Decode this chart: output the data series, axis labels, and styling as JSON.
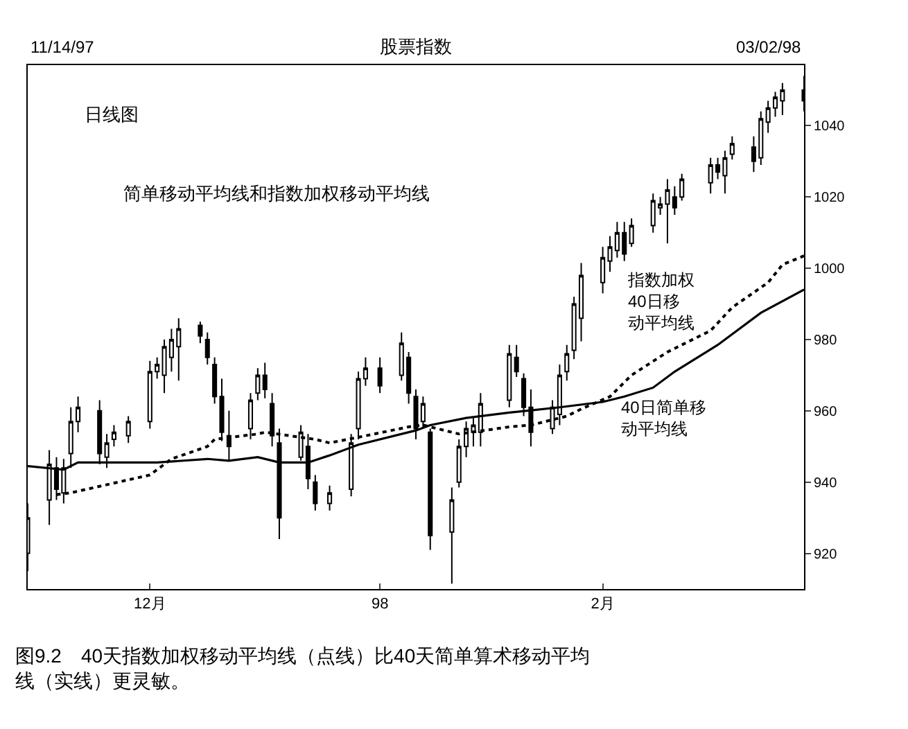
{
  "chart_data": {
    "type": "candlestick",
    "title": "股票指数",
    "annotations": [
      "11/14/97",
      "03/02/98",
      "日线图",
      "简单移动平均线和指数加权移动平均线",
      "图9.2　40天指数加权移动平均线（点线）比40天简单算术移动平均线（实线）更灵敏。"
    ],
    "x": [
      "1997-11-14",
      "1997-11-17",
      "1997-11-18",
      "1997-11-19",
      "1997-11-20",
      "1997-11-21",
      "1997-11-24",
      "1997-11-25",
      "1997-11-26",
      "1997-11-28",
      "1997-12-01",
      "1997-12-02",
      "1997-12-03",
      "1997-12-04",
      "1997-12-05",
      "1997-12-08",
      "1997-12-09",
      "1997-12-10",
      "1997-12-11",
      "1997-12-12",
      "1997-12-15",
      "1997-12-16",
      "1997-12-17",
      "1997-12-18",
      "1997-12-19",
      "1997-12-22",
      "1997-12-23",
      "1997-12-24",
      "1997-12-26",
      "1997-12-29",
      "1997-12-30",
      "1997-12-31",
      "1998-01-02",
      "1998-01-05",
      "1998-01-06",
      "1998-01-07",
      "1998-01-08",
      "1998-01-09",
      "1998-01-12",
      "1998-01-13",
      "1998-01-14",
      "1998-01-15",
      "1998-01-16",
      "1998-01-20",
      "1998-01-21",
      "1998-01-22",
      "1998-01-23",
      "1998-01-26",
      "1998-01-27",
      "1998-01-28",
      "1998-01-29",
      "1998-01-30",
      "1998-02-02",
      "1998-02-03",
      "1998-02-04",
      "1998-02-05",
      "1998-02-06",
      "1998-02-09",
      "1998-02-10",
      "1998-02-11",
      "1998-02-12",
      "1998-02-13",
      "1998-02-17",
      "1998-02-18",
      "1998-02-19",
      "1998-02-20",
      "1998-02-23",
      "1998-02-24",
      "1998-02-25",
      "1998-02-26",
      "1998-02-27",
      "1998-03-02"
    ],
    "ohlc": [
      [
        920,
        934,
        915,
        930
      ],
      [
        935,
        949,
        928,
        945
      ],
      [
        944,
        947,
        935,
        938
      ],
      [
        937,
        946.5,
        934,
        944
      ],
      [
        948,
        961,
        944,
        957
      ],
      [
        957,
        964,
        954,
        961
      ],
      [
        960,
        963,
        945,
        948
      ],
      [
        947,
        953.5,
        944,
        951
      ],
      [
        952,
        956,
        950,
        954
      ],
      [
        953,
        958.5,
        951,
        957
      ],
      [
        957,
        974,
        955,
        971
      ],
      [
        971,
        975,
        969,
        973
      ],
      [
        970,
        980,
        965,
        978
      ],
      [
        975,
        983,
        971,
        980
      ],
      [
        978,
        986,
        968.5,
        983
      ],
      [
        984,
        985,
        979,
        981
      ],
      [
        980,
        982,
        973,
        975
      ],
      [
        973,
        975,
        962,
        964
      ],
      [
        964,
        969,
        951.5,
        954
      ],
      [
        953,
        960,
        946,
        950
      ],
      [
        955,
        965,
        952,
        963
      ],
      [
        965,
        972,
        963,
        970
      ],
      [
        970,
        973.5,
        963.5,
        966
      ],
      [
        962,
        965,
        950,
        953
      ],
      [
        951,
        955,
        924,
        930
      ],
      [
        947,
        956,
        946,
        954
      ],
      [
        950,
        953.5,
        938,
        941
      ],
      [
        940,
        942,
        932,
        934
      ],
      [
        934,
        939,
        932,
        937
      ],
      [
        938,
        953.5,
        936,
        951
      ],
      [
        955,
        971,
        952,
        969
      ],
      [
        969,
        975,
        967,
        972
      ],
      [
        972,
        975,
        965,
        967
      ],
      [
        970,
        982,
        968.5,
        979
      ],
      [
        975,
        976.5,
        962,
        965
      ],
      [
        964,
        966,
        952,
        955
      ],
      [
        957,
        964,
        955,
        962
      ],
      [
        954,
        955,
        921,
        925
      ],
      [
        926,
        938.5,
        911.5,
        935
      ],
      [
        940,
        952,
        938.5,
        950
      ],
      [
        950,
        957,
        947,
        955
      ],
      [
        954,
        958,
        950,
        956
      ],
      [
        954,
        965,
        950,
        962
      ],
      [
        963,
        978.5,
        961,
        976
      ],
      [
        975,
        978.5,
        969.5,
        971
      ],
      [
        969,
        970.5,
        958.5,
        961
      ],
      [
        961,
        966,
        950,
        954
      ],
      [
        955,
        963,
        953.5,
        961
      ],
      [
        959,
        973,
        956,
        970
      ],
      [
        971,
        978.5,
        968.5,
        976
      ],
      [
        977,
        992,
        974.5,
        990
      ],
      [
        986,
        1001.5,
        979.5,
        998
      ],
      [
        996,
        1006,
        993,
        1003
      ],
      [
        1002,
        1009,
        999,
        1006
      ],
      [
        1005,
        1013,
        1003,
        1010
      ],
      [
        1010,
        1013,
        1002,
        1004
      ],
      [
        1007,
        1014,
        1006,
        1012
      ],
      [
        1012,
        1021,
        1010,
        1019
      ],
      [
        1017,
        1020,
        1015,
        1018
      ],
      [
        1018,
        1025,
        1007,
        1022
      ],
      [
        1020,
        1023,
        1015,
        1017
      ],
      [
        1020,
        1026.5,
        1019,
        1025
      ],
      [
        1024,
        1031,
        1021,
        1029
      ],
      [
        1029,
        1031,
        1025,
        1027
      ],
      [
        1026,
        1033,
        1021,
        1031
      ],
      [
        1032,
        1037,
        1030.5,
        1035
      ],
      [
        1034,
        1037,
        1027,
        1030
      ],
      [
        1031,
        1044,
        1029,
        1042
      ],
      [
        1041,
        1047,
        1038,
        1045
      ],
      [
        1045,
        1049.5,
        1042.5,
        1048
      ],
      [
        1047,
        1052,
        1043,
        1050
      ],
      [
        1050,
        1054,
        1044,
        1047
      ]
    ],
    "color": "#000000",
    "series": [
      {
        "name": "指数加权40日移动平均线",
        "type": "line",
        "line_style": "dotted",
        "color": "#000000",
        "x": [
          "1997-11-18",
          "1997-11-20",
          "1997-12-01",
          "1997-12-04",
          "1997-12-09",
          "1997-12-10",
          "1997-12-16",
          "1997-12-17",
          "1997-12-24",
          "1997-12-26",
          "1997-12-31",
          "1998-01-06",
          "1998-01-08",
          "1998-01-13",
          "1998-01-20",
          "1998-01-23",
          "1998-01-28",
          "1998-01-30",
          "1998-02-03",
          "1998-02-06",
          "1998-02-11",
          "1998-02-17",
          "1998-02-20",
          "1998-02-25",
          "1998-02-27",
          "1998-03-02"
        ],
        "values": [
          936.5,
          937,
          942,
          946.5,
          950,
          952,
          953.5,
          954,
          952,
          951,
          953,
          955.5,
          956,
          953.5,
          955.5,
          956,
          958.5,
          960.5,
          964,
          970,
          976.5,
          982.5,
          989,
          996,
          1001,
          1003.5
        ]
      },
      {
        "name": "40日简单移动平均线",
        "type": "line",
        "line_style": "solid",
        "color": "#000000",
        "x": [
          "1997-11-14",
          "1997-11-19",
          "1997-11-21",
          "1997-12-02",
          "1997-12-09",
          "1997-12-12",
          "1997-12-16",
          "1997-12-19",
          "1997-12-23",
          "1997-12-26",
          "1997-12-30",
          "1998-01-07",
          "1998-01-09",
          "1998-01-14",
          "1998-01-20",
          "1998-01-27",
          "1998-02-02",
          "1998-02-05",
          "1998-02-09",
          "1998-02-12",
          "1998-02-18",
          "1998-02-24",
          "1998-03-02"
        ],
        "values": [
          944.5,
          943.5,
          945.5,
          945.5,
          946.5,
          946,
          947,
          945.5,
          945.5,
          947.5,
          950.5,
          954.5,
          956,
          958,
          959.5,
          961,
          962.5,
          964,
          966.5,
          971,
          978.5,
          987.5,
          994
        ]
      }
    ],
    "xlim": [
      "1997-11-14",
      "1998-03-02"
    ],
    "xticks": [
      {
        "value": "1997-12-01",
        "label": "12月"
      },
      {
        "value": "1998-01-02",
        "label": "98"
      },
      {
        "value": "1998-02-02",
        "label": "2月"
      }
    ],
    "ylim": [
      910,
      1057
    ],
    "yticks": [
      920,
      940,
      960,
      980,
      1000,
      1020,
      1040
    ],
    "grid": false,
    "legend": false,
    "marker": "none"
  }
}
